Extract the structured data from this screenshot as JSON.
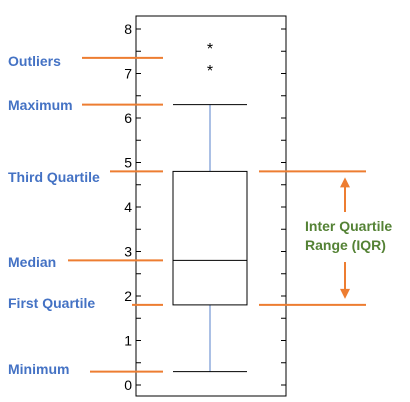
{
  "chart_data": {
    "type": "box",
    "y_ticks": [
      "0",
      "1",
      "2",
      "3",
      "4",
      "5",
      "6",
      "7",
      "8"
    ],
    "ylim": [
      0,
      8
    ],
    "box": {
      "minimum": 0.3,
      "first_quartile": 1.8,
      "median": 2.8,
      "third_quartile": 4.8,
      "maximum": 6.3
    },
    "outliers": [
      7.6,
      7.1
    ],
    "outlier_marker": "*"
  },
  "annotations": {
    "outliers": "Outliers",
    "maximum": "Maximum",
    "third_quartile": "Third Quartile",
    "median": "Median",
    "first_quartile": "First Quartile",
    "minimum": "Minimum",
    "iqr_line1": "Inter Quartile",
    "iqr_line2": "Range (IQR)"
  },
  "colors": {
    "label_blue": "#4472c4",
    "iqr_green": "#548235",
    "annotation_orange": "#ed7d31",
    "whisker_blue": "#8faadc"
  }
}
